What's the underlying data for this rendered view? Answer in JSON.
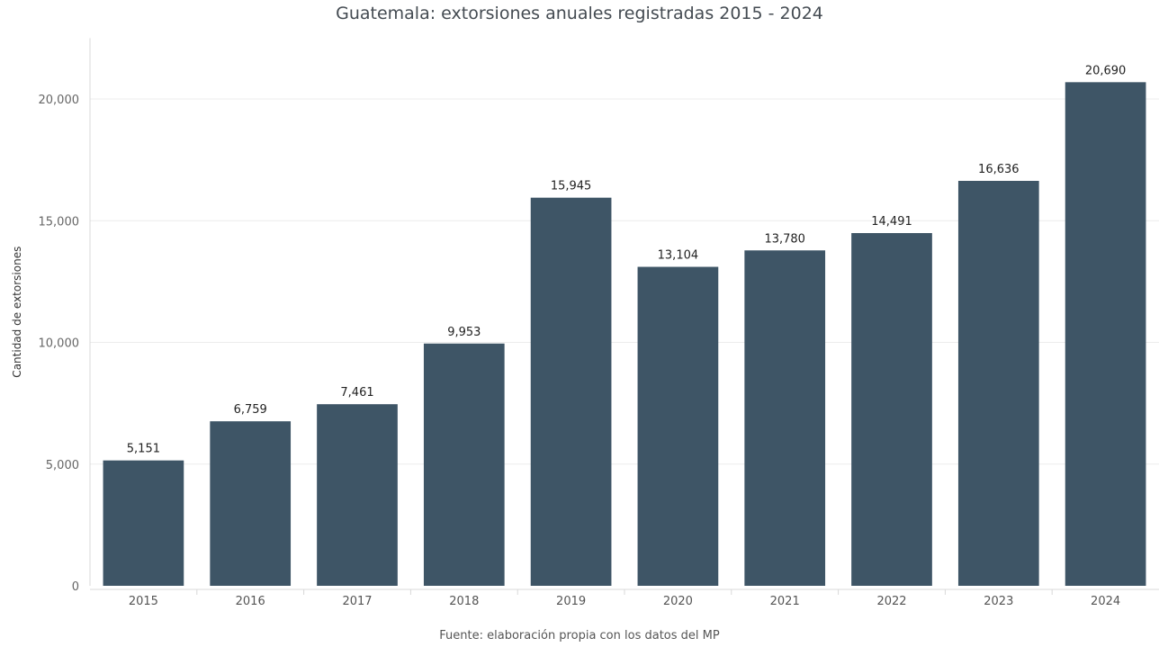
{
  "chart_data": {
    "type": "bar",
    "title": "Guatemala: extorsiones anuales registradas 2015 - 2024",
    "caption": "Fuente: elaboración propia con los datos del MP",
    "xlabel": "",
    "ylabel": "Cantidad de extorsiones",
    "categories": [
      "2015",
      "2016",
      "2017",
      "2018",
      "2019",
      "2020",
      "2021",
      "2022",
      "2023",
      "2024"
    ],
    "values": [
      5151,
      6759,
      7461,
      9953,
      15945,
      13104,
      13780,
      14491,
      16636,
      20690
    ],
    "data_labels": [
      "5,151",
      "6,759",
      "7,461",
      "9,953",
      "15,945",
      "13,104",
      "13,780",
      "14,491",
      "16,636",
      "20,690"
    ],
    "ylim": [
      0,
      22500
    ],
    "yticks": [
      0,
      5000,
      10000,
      15000,
      20000
    ],
    "ytick_labels": [
      "0",
      "5,000",
      "10,000",
      "15,000",
      "20,000"
    ],
    "grid": true,
    "legend": "none",
    "bar_color": "#3e5566"
  }
}
